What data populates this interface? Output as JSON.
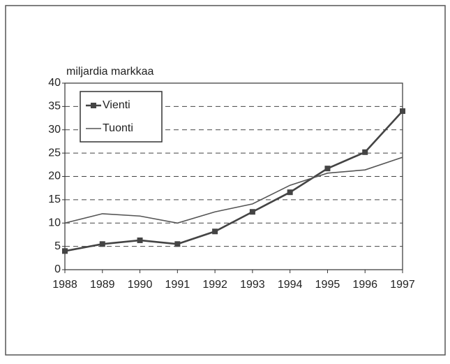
{
  "chart_data": {
    "type": "line",
    "y_axis_label": "miljardia markkaa",
    "categories": [
      "1988",
      "1989",
      "1990",
      "1991",
      "1992",
      "1993",
      "1994",
      "1995",
      "1996",
      "1997"
    ],
    "series": [
      {
        "name": "Vienti",
        "color": "#444444",
        "marker": "square",
        "values": [
          4.0,
          5.5,
          6.3,
          5.5,
          8.2,
          12.4,
          16.6,
          21.7,
          25.2,
          34.0
        ]
      },
      {
        "name": "Tuonti",
        "color": "#555555",
        "marker": "none",
        "values": [
          10.0,
          12.0,
          11.5,
          10.0,
          12.4,
          14.1,
          18.1,
          20.7,
          21.4,
          24.1
        ]
      }
    ],
    "ylim": [
      0,
      40
    ],
    "yticks": [
      0,
      5,
      10,
      15,
      20,
      25,
      30,
      35,
      40
    ],
    "grid": true,
    "legend": "upper left"
  }
}
